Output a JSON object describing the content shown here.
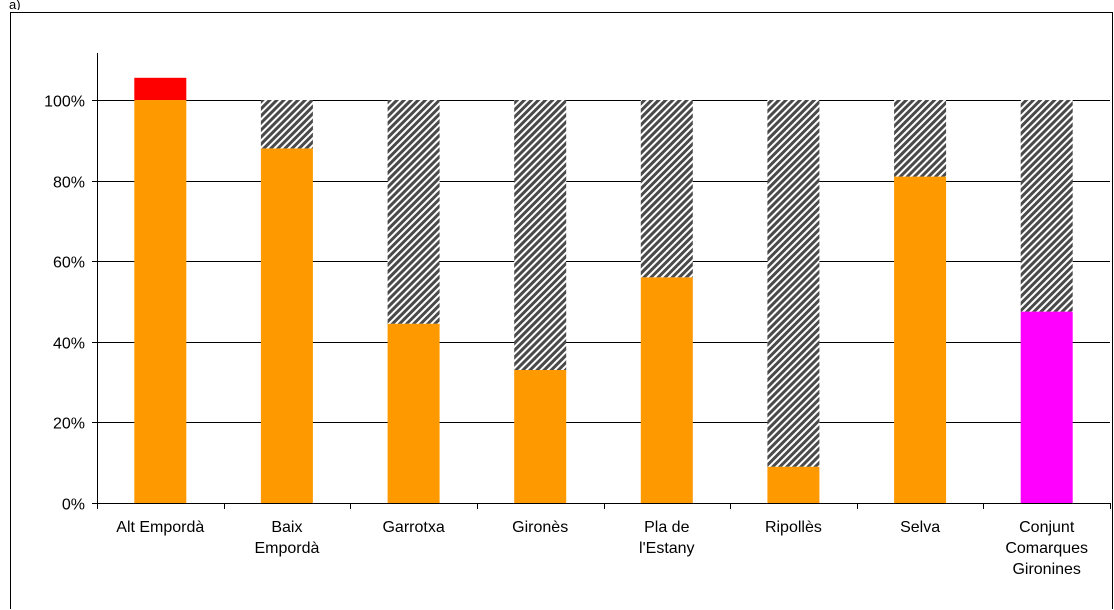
{
  "header_fragment": "a)",
  "chart_data": {
    "type": "bar",
    "stacked": true,
    "categories": [
      [
        "Alt Empordà"
      ],
      [
        "Baix",
        "Empordà"
      ],
      [
        "Garrotxa"
      ],
      [
        "Gironès"
      ],
      [
        "Pla de",
        "l'Estany"
      ],
      [
        "Ripollès"
      ],
      [
        "Selva"
      ],
      [
        "Conjunt",
        "Comarques",
        "Gironines"
      ]
    ],
    "series": [
      {
        "values": [
          100,
          88,
          44.5,
          33,
          56,
          9,
          81,
          47.5
        ],
        "colors": [
          "#FF9900",
          "#FF9900",
          "#FF9900",
          "#FF9900",
          "#FF9900",
          "#FF9900",
          "#FF9900",
          "#FF00FF"
        ]
      },
      {
        "values": [
          5.5,
          0,
          0,
          0,
          0,
          0,
          0,
          0
        ],
        "color": "#FF0000"
      },
      {
        "values": [
          0,
          12,
          55.5,
          67,
          44,
          91,
          19,
          52.5
        ],
        "color": "#808080",
        "pattern": "diagonal-hatch"
      }
    ],
    "y_ticks": [
      "0%",
      "20%",
      "40%",
      "60%",
      "80%",
      "100%"
    ],
    "y_tick_values": [
      0,
      20,
      40,
      60,
      80,
      100
    ],
    "ylim": [
      0,
      100
    ],
    "grid": true,
    "xlabel": "",
    "ylabel": ""
  }
}
